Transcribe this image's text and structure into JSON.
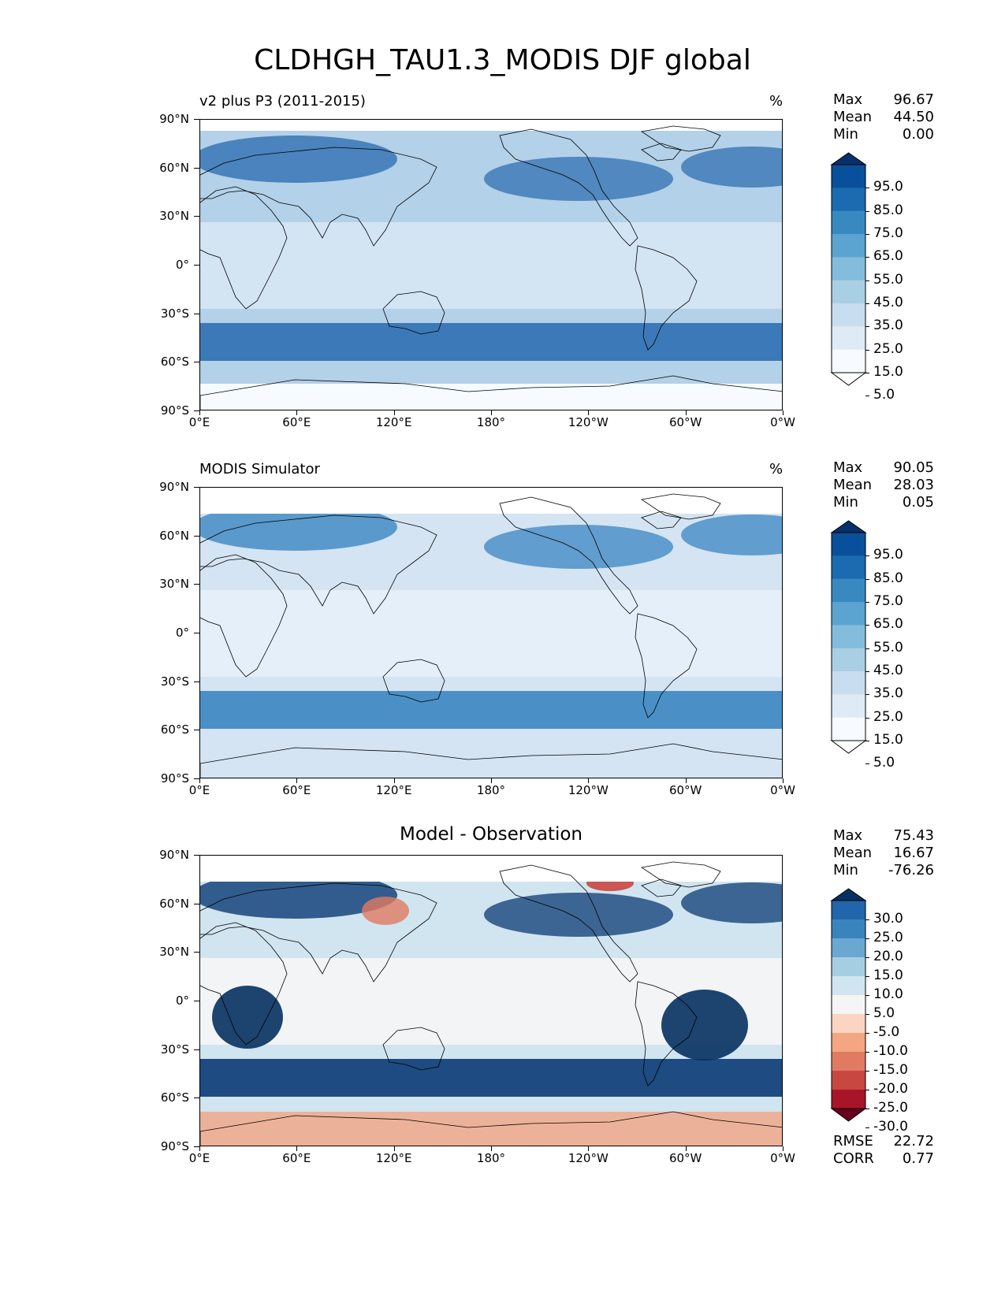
{
  "title": "CLDHGH_TAU1.3_MODIS DJF global",
  "lat_ticks": [
    "90°N",
    "60°N",
    "30°N",
    "0°",
    "30°S",
    "60°S",
    "90°S"
  ],
  "lon_ticks": [
    "0°E",
    "60°E",
    "120°E",
    "180°",
    "120°W",
    "60°W",
    "0°W"
  ],
  "panels": [
    {
      "title": "v2 plus P3 (2011-2015)",
      "units": "%",
      "stats": {
        "max_label": "Max",
        "max": "96.67",
        "mean_label": "Mean",
        "mean": "44.50",
        "min_label": "Min",
        "min": "0.00"
      },
      "colorbar": {
        "levels": [
          "95.0",
          "85.0",
          "75.0",
          "65.0",
          "55.0",
          "45.0",
          "35.0",
          "25.0",
          "15.0",
          "5.0"
        ],
        "colors": [
          "#08306b",
          "#08509b",
          "#1c6ab0",
          "#3989c1",
          "#5ba3d0",
          "#84bcdb",
          "#a9cfe5",
          "#c8ddf0",
          "#deebf7",
          "#f7fbff",
          "#ffffff"
        ]
      },
      "map_colors": {
        "ocean_base": "#b3d1e8",
        "tropics": "#d6e6f4",
        "midlat": "#2f6fb2",
        "land": "#e8f1fa"
      }
    },
    {
      "title": "MODIS Simulator",
      "units": "%",
      "stats": {
        "max_label": "Max",
        "max": "90.05",
        "mean_label": "Mean",
        "mean": "28.03",
        "min_label": "Min",
        "min": "0.05"
      },
      "colorbar": {
        "levels": [
          "95.0",
          "85.0",
          "75.0",
          "65.0",
          "55.0",
          "45.0",
          "35.0",
          "25.0",
          "15.0",
          "5.0"
        ],
        "colors": [
          "#08306b",
          "#08509b",
          "#1c6ab0",
          "#3989c1",
          "#5ba3d0",
          "#84bcdb",
          "#a9cfe5",
          "#c8ddf0",
          "#deebf7",
          "#f7fbff",
          "#ffffff"
        ]
      },
      "map_colors": {
        "ocean_base": "#d4e4f3",
        "tropics": "#e6eff9",
        "midlat": "#3b86c2",
        "land": "#eef5fb"
      }
    },
    {
      "title": "Model - Observation",
      "stats": {
        "max_label": "Max",
        "max": "75.43",
        "mean_label": "Mean",
        "mean": "16.67",
        "min_label": "Min",
        "min": "-76.26"
      },
      "colorbar": {
        "levels": [
          "30.0",
          "25.0",
          "20.0",
          "15.0",
          "10.0",
          "5.0",
          "-5.0",
          "-10.0",
          "-15.0",
          "-20.0",
          "-25.0",
          "-30.0"
        ],
        "colors": [
          "#053061",
          "#2166ac",
          "#3a84bd",
          "#6aa8d1",
          "#a6cee3",
          "#d1e5f0",
          "#f5f5f5",
          "#fbd5c2",
          "#f4a582",
          "#e07b62",
          "#c94741",
          "#a81529",
          "#67001f"
        ]
      },
      "map_colors": {
        "ocean_base": "#d1e5f0",
        "tropics": "#f5f5f5",
        "midlat": "#0a3a74",
        "land": "#f7f7f7"
      },
      "summary": {
        "rmse_label": "RMSE",
        "rmse": "22.72",
        "corr_label": "CORR",
        "corr": "0.77"
      }
    }
  ]
}
